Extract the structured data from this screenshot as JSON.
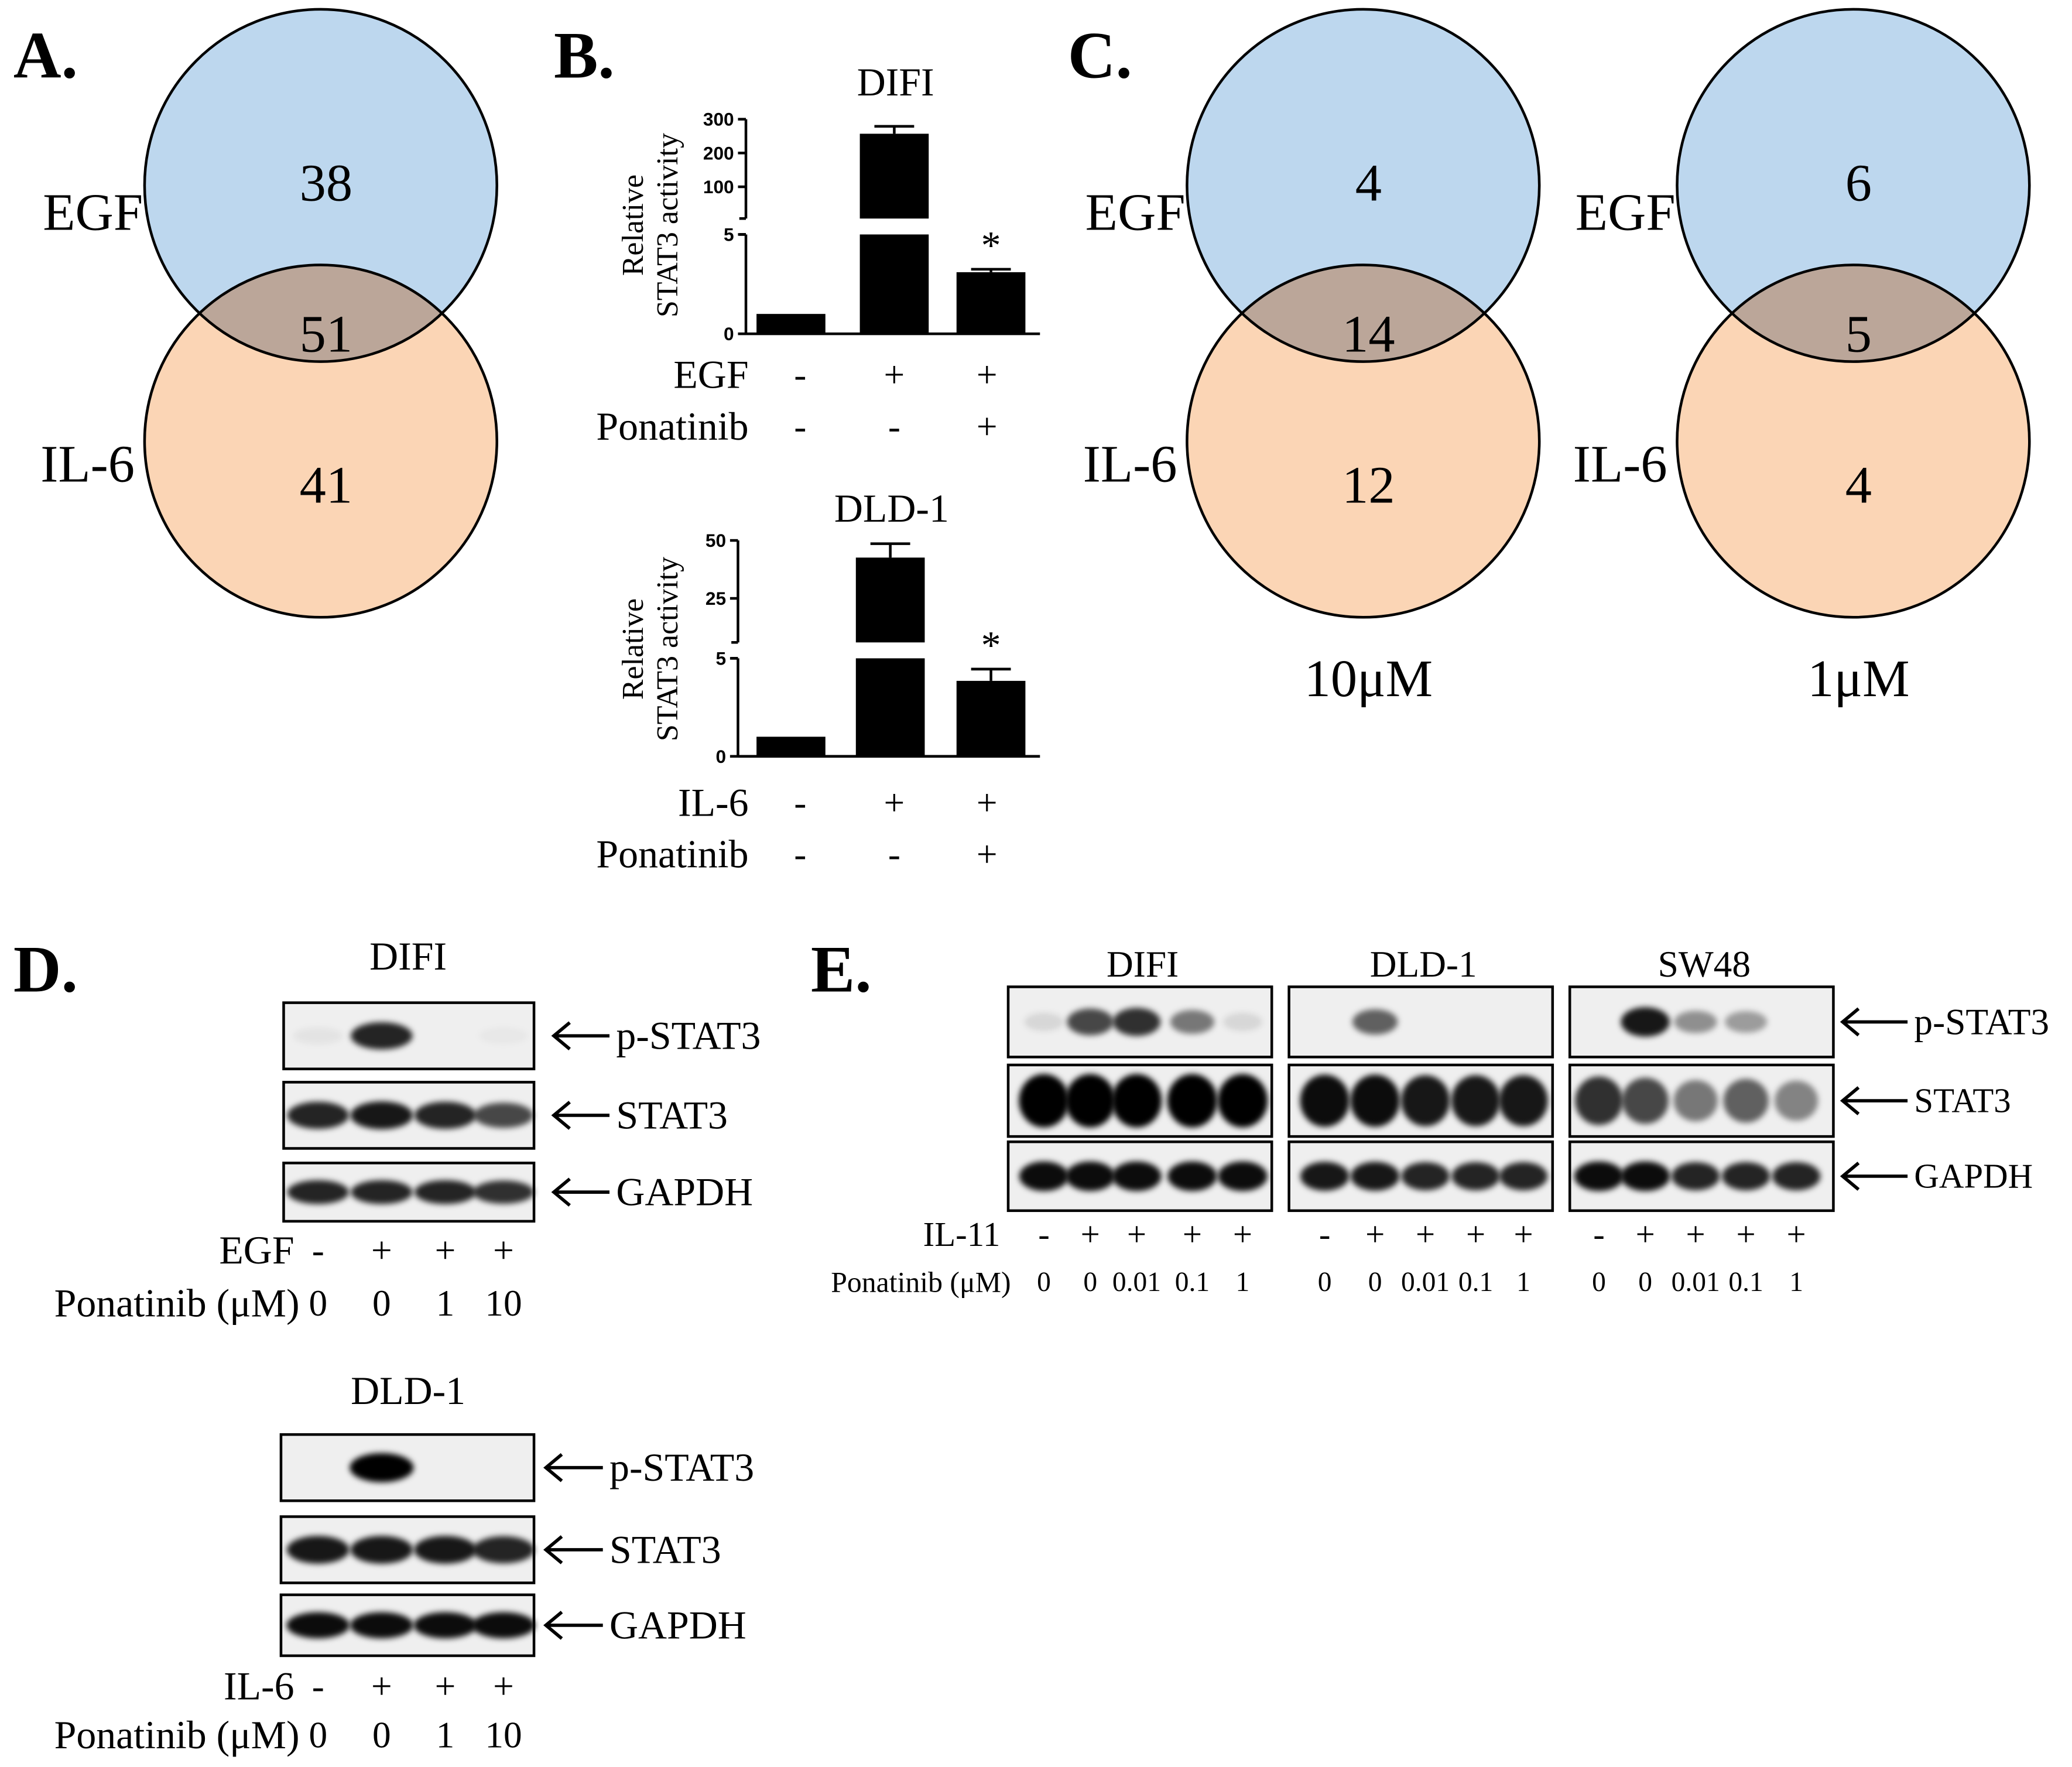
{
  "panels": {
    "A": {
      "label": "A.",
      "venn": {
        "sets": [
          "EGF",
          "IL-6"
        ],
        "counts": [
          38,
          51,
          41
        ]
      }
    },
    "B": {
      "label": "B."
    },
    "C": {
      "label": "C.",
      "venns": [
        {
          "sets": [
            "EGF",
            "IL-6"
          ],
          "counts": [
            4,
            14,
            12
          ],
          "caption": "10μM"
        },
        {
          "sets": [
            "EGF",
            "IL-6"
          ],
          "counts": [
            6,
            5,
            4
          ],
          "caption": "1μM"
        }
      ]
    },
    "D": {
      "label": "D.",
      "blots": [
        {
          "title": "DIFI",
          "bands": [
            "p-STAT3",
            "STAT3",
            "GAPDH"
          ],
          "conditions": [
            {
              "name": "EGF",
              "values": [
                "-",
                "+",
                "+",
                "+"
              ]
            },
            {
              "name": "Ponatinib (μM)",
              "values": [
                "0",
                "0",
                "1",
                "10"
              ]
            }
          ]
        },
        {
          "title": "DLD-1",
          "bands": [
            "p-STAT3",
            "STAT3",
            "GAPDH"
          ],
          "conditions": [
            {
              "name": "IL-6",
              "values": [
                "-",
                "+",
                "+",
                "+"
              ]
            },
            {
              "name": "Ponatinib (μM)",
              "values": [
                "0",
                "0",
                "1",
                "10"
              ]
            }
          ]
        }
      ]
    },
    "E": {
      "label": "E.",
      "bands": [
        "p-STAT3",
        "STAT3",
        "GAPDH"
      ],
      "conditions": [
        "IL-11",
        "Ponatinib (μM)"
      ],
      "blots": [
        {
          "title": "DIFI",
          "values": [
            [
              "-",
              "+",
              "+",
              "+",
              "+"
            ],
            [
              "0",
              "0",
              "0.01",
              "0.1",
              "1"
            ]
          ]
        },
        {
          "title": "DLD-1",
          "values": [
            [
              "-",
              "+",
              "+",
              "+",
              "+"
            ],
            [
              "0",
              "0",
              "0.01",
              "0.1",
              "1"
            ]
          ]
        },
        {
          "title": "SW48",
          "values": [
            [
              "-",
              "+",
              "+",
              "+",
              "+"
            ],
            [
              "0",
              "0",
              "0.01",
              "0.1",
              "1"
            ]
          ]
        }
      ]
    }
  },
  "chart_data": [
    {
      "type": "bar",
      "title": "DIFI",
      "ylabel": [
        "Relative",
        "STAT3 activity"
      ],
      "color": "#000000",
      "values": [
        1,
        257,
        3.1
      ],
      "errors": [
        0,
        22,
        0.15
      ],
      "annotations": [
        null,
        null,
        "*"
      ],
      "ylim_segments": [
        [
          0,
          5
        ],
        [
          6,
          300
        ]
      ],
      "yticks_segments": [
        [
          0,
          5
        ],
        [
          100,
          200,
          300
        ]
      ],
      "conditions": [
        {
          "name": "EGF",
          "values": [
            "-",
            "+",
            "+"
          ]
        },
        {
          "name": "Ponatinib",
          "values": [
            "-",
            "-",
            "+"
          ]
        }
      ]
    },
    {
      "type": "bar",
      "title": "DLD-1",
      "ylabel": [
        "Relative",
        "STAT3 activity"
      ],
      "color": "#000000",
      "values": [
        1,
        42.6,
        3.85
      ],
      "errors": [
        0,
        6,
        0.6
      ],
      "annotations": [
        null,
        null,
        "*"
      ],
      "ylim_segments": [
        [
          0,
          5
        ],
        [
          6,
          50
        ]
      ],
      "yticks_segments": [
        [
          0,
          5
        ],
        [
          25,
          50
        ]
      ],
      "conditions": [
        {
          "name": "IL-6",
          "values": [
            "-",
            "+",
            "+"
          ]
        },
        {
          "name": "Ponatinib",
          "values": [
            "-",
            "-",
            "+"
          ]
        }
      ]
    }
  ]
}
